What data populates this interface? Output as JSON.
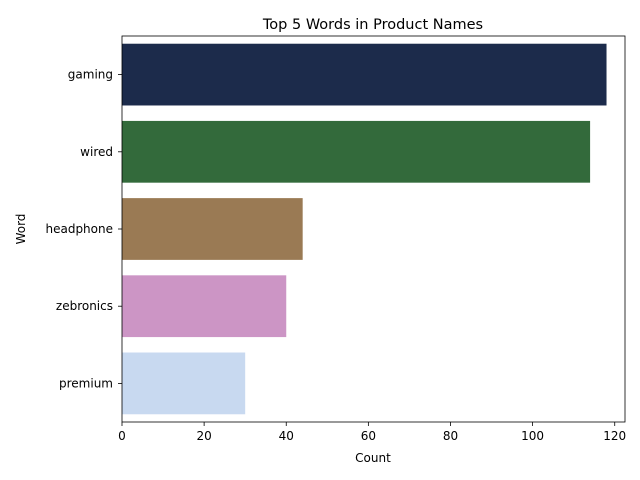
{
  "chart_data": {
    "type": "bar",
    "orientation": "horizontal",
    "title": "Top 5 Words in Product Names",
    "xlabel": "Count",
    "ylabel": "Word",
    "categories": [
      "gaming",
      "wired",
      "headphone",
      "zebronics",
      "premium"
    ],
    "values": [
      118,
      114,
      44,
      40,
      30
    ],
    "colors": [
      "#1c2b4b",
      "#336a3b",
      "#9a7a54",
      "#cc95c5",
      "#c8d9f0"
    ],
    "xlim": [
      0,
      122.5
    ],
    "xticks": [
      0,
      20,
      40,
      60,
      80,
      100,
      120
    ],
    "grid": false,
    "legend": "none"
  }
}
